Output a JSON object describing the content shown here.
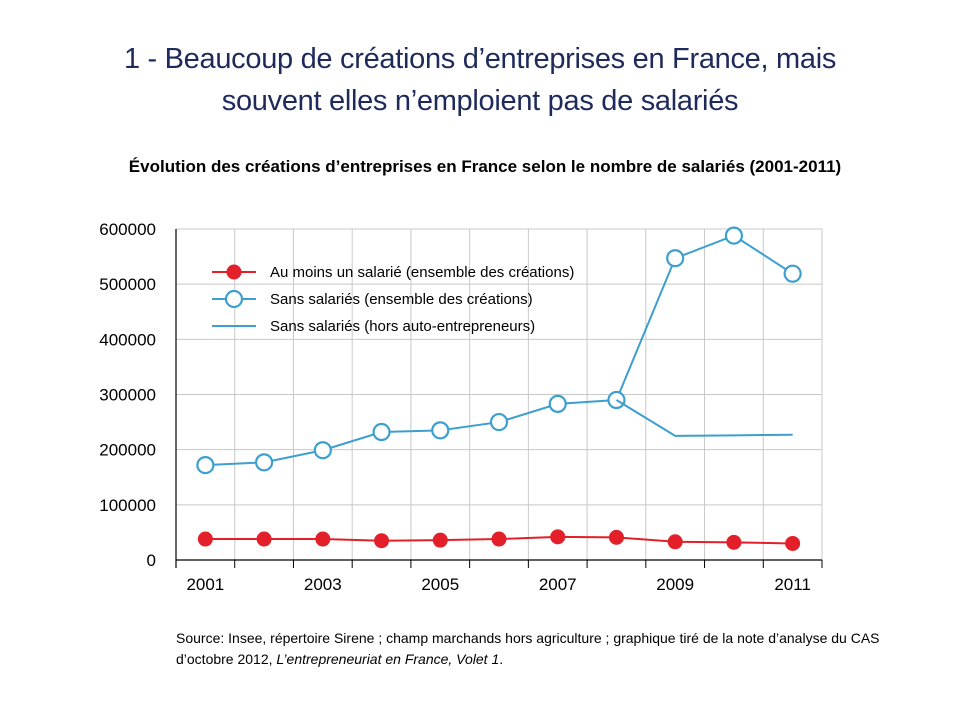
{
  "slide": {
    "title_line1": "1 - Beaucoup de créations d’entreprises en France, mais",
    "title_line2": "souvent elles n’emploient pas de salariés",
    "source_text": "Source: Insee, répertoire Sirene ; champ marchands hors agriculture ; graphique tiré de la note d’analyse du CAS d’octobre 2012, ",
    "source_italic": "L’entrepreneuriat en France, Volet 1",
    "source_end": "."
  },
  "colors": {
    "red": "#e3202a",
    "blue": "#3d9fcf",
    "grid": "#c8c8c8",
    "title": "#1f2a5c"
  },
  "chart_data": {
    "type": "line",
    "title": "Évolution des créations d’entreprises en France selon le nombre de salariés (2001-2011)",
    "xlabel": "",
    "ylabel": "",
    "x": [
      2001,
      2002,
      2003,
      2004,
      2005,
      2006,
      2007,
      2008,
      2009,
      2010,
      2011
    ],
    "x_tick_labels": [
      "2001",
      "2003",
      "2005",
      "2007",
      "2009",
      "2011"
    ],
    "x_tick_values": [
      2001,
      2003,
      2005,
      2007,
      2009,
      2011
    ],
    "xlim": [
      2000.5,
      2011.5
    ],
    "ylim": [
      0,
      600000
    ],
    "y_ticks": [
      0,
      100000,
      200000,
      300000,
      400000,
      500000,
      600000
    ],
    "y_tick_labels": [
      "0",
      "100000",
      "200000",
      "300000",
      "400000",
      "500000",
      "600000"
    ],
    "grid": true,
    "legend_position": "top-left",
    "series": [
      {
        "name": "Au moins un salarié (ensemble des créations)",
        "marker": "filled-circle",
        "color": "#e3202a",
        "x": [
          2001,
          2002,
          2003,
          2004,
          2005,
          2006,
          2007,
          2008,
          2009,
          2010,
          2011
        ],
        "values": [
          38000,
          38000,
          38000,
          35000,
          36000,
          38000,
          42000,
          41000,
          33000,
          32000,
          30000
        ]
      },
      {
        "name": "Sans salariés (ensemble des créations)",
        "marker": "open-circle",
        "color": "#3d9fcf",
        "x": [
          2001,
          2002,
          2003,
          2004,
          2005,
          2006,
          2007,
          2008,
          2009,
          2010,
          2011
        ],
        "values": [
          172000,
          177000,
          199000,
          232000,
          235000,
          250000,
          283000,
          290000,
          547000,
          588000,
          519000
        ]
      },
      {
        "name": "Sans salariés (hors auto-entrepreneurs)",
        "marker": "none",
        "color": "#3d9fcf",
        "x": [
          2008,
          2009,
          2010,
          2011
        ],
        "values": [
          290000,
          225000,
          226000,
          227000
        ]
      }
    ]
  }
}
